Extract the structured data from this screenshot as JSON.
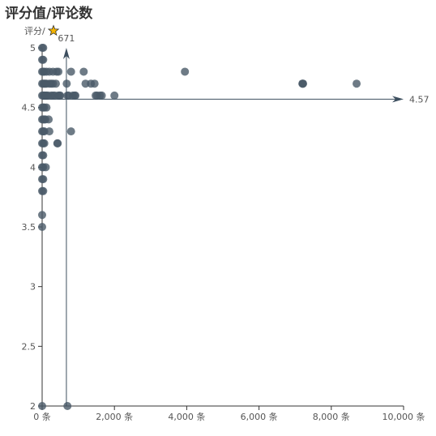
{
  "chart_data": {
    "type": "scatter",
    "title": "评分值/评论数",
    "ylabel": "评分/",
    "y_icon": "star-icon",
    "xlim": [
      0,
      10000
    ],
    "ylim": [
      2,
      5
    ],
    "x_ticks": [
      0,
      2000,
      4000,
      6000,
      8000,
      10000
    ],
    "x_tick_labels": [
      "0 条",
      "2,000 条",
      "4,000 条",
      "6,000 条",
      "8,000 条",
      "10,000 条"
    ],
    "y_ticks": [
      2,
      2.5,
      3,
      3.5,
      4,
      4.5,
      5
    ],
    "y_tick_labels": [
      "2",
      "2.5",
      "3",
      "3.5",
      "4",
      "4.5",
      "5"
    ],
    "grid": false,
    "mean_lines": {
      "x_value": 671,
      "x_label": "671",
      "y_value": 4.57,
      "y_label": "4.57"
    },
    "points": [
      [
        0,
        5
      ],
      [
        0,
        4.9
      ],
      [
        0,
        4.8
      ],
      [
        0,
        4.7
      ],
      [
        0,
        4.6
      ],
      [
        0,
        4.5
      ],
      [
        0,
        4.4
      ],
      [
        0,
        4.3
      ],
      [
        0,
        4.2
      ],
      [
        0,
        4.1
      ],
      [
        0,
        4.0
      ],
      [
        0,
        3.9
      ],
      [
        0,
        3.8
      ],
      [
        0,
        3.6
      ],
      [
        0,
        3.5
      ],
      [
        0,
        2
      ],
      [
        30,
        5
      ],
      [
        30,
        4.9
      ],
      [
        30,
        4.8
      ],
      [
        30,
        4.7
      ],
      [
        30,
        4.6
      ],
      [
        30,
        4.5
      ],
      [
        30,
        4.4
      ],
      [
        30,
        4.3
      ],
      [
        30,
        4.2
      ],
      [
        30,
        4.1
      ],
      [
        30,
        4.0
      ],
      [
        30,
        3.9
      ],
      [
        30,
        3.8
      ],
      [
        60,
        4.8
      ],
      [
        60,
        4.7
      ],
      [
        60,
        4.6
      ],
      [
        60,
        4.5
      ],
      [
        60,
        4.4
      ],
      [
        60,
        4.3
      ],
      [
        60,
        4.2
      ],
      [
        90,
        4.7
      ],
      [
        90,
        4.6
      ],
      [
        90,
        4.4
      ],
      [
        100,
        4.0
      ],
      [
        120,
        4.8
      ],
      [
        120,
        4.7
      ],
      [
        120,
        4.6
      ],
      [
        120,
        4.5
      ],
      [
        160,
        4.6
      ],
      [
        180,
        4.4
      ],
      [
        200,
        4.8
      ],
      [
        200,
        4.7
      ],
      [
        200,
        4.3
      ],
      [
        250,
        4.6
      ],
      [
        250,
        4.7
      ],
      [
        300,
        4.8
      ],
      [
        300,
        4.7
      ],
      [
        300,
        4.6
      ],
      [
        350,
        4.6
      ],
      [
        380,
        4.7
      ],
      [
        400,
        4.8
      ],
      [
        420,
        4.2
      ],
      [
        430,
        4.2
      ],
      [
        450,
        4.8
      ],
      [
        450,
        4.6
      ],
      [
        480,
        4.6
      ],
      [
        500,
        4.6
      ],
      [
        680,
        4.7
      ],
      [
        700,
        4.6
      ],
      [
        700,
        2
      ],
      [
        730,
        4.6
      ],
      [
        800,
        4.8
      ],
      [
        800,
        4.3
      ],
      [
        850,
        4.6
      ],
      [
        900,
        4.6
      ],
      [
        920,
        4.6
      ],
      [
        1150,
        4.8
      ],
      [
        1200,
        4.7
      ],
      [
        1350,
        4.7
      ],
      [
        1450,
        4.7
      ],
      [
        1480,
        4.6
      ],
      [
        1520,
        4.6
      ],
      [
        1600,
        4.6
      ],
      [
        1650,
        4.6
      ],
      [
        2000,
        4.6
      ],
      [
        3950,
        4.8
      ],
      [
        7200,
        4.7
      ],
      [
        7210,
        4.7
      ],
      [
        7220,
        4.7
      ],
      [
        8700,
        4.7
      ]
    ],
    "colors": {
      "point": "#4a5a68",
      "axis": "#333333",
      "mean_line": "#3d4f5f",
      "star": "#f4b400",
      "star_stroke": "#333333"
    }
  }
}
